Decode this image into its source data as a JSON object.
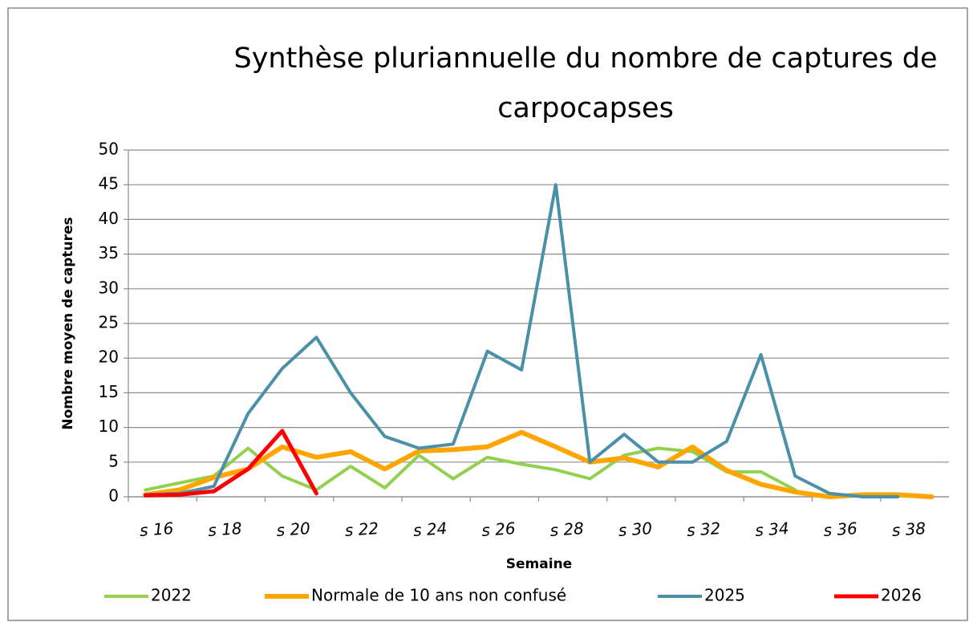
{
  "chart_data": {
    "type": "line",
    "title": "Synthèse pluriannuelle du nombre de captures de carpocapses",
    "y_label": "Nombre moyen de captures",
    "x_label": "Semaine",
    "categories": [
      "s 16",
      null,
      "s 18",
      null,
      "s 20",
      null,
      "s 22",
      null,
      "s 24",
      null,
      "s 26",
      null,
      "s 28",
      null,
      "s 30",
      null,
      "s 32",
      null,
      "s 34",
      null,
      "s 36",
      null,
      "s 38",
      null
    ],
    "series": [
      {
        "name": "2022",
        "color": "#92d050",
        "values": [
          1,
          2,
          3,
          7,
          3,
          1,
          4.4,
          1.3,
          6,
          2.6,
          5.7,
          4.7,
          3.9,
          2.6,
          6,
          7,
          6.5,
          3.6,
          3.6,
          1,
          null,
          null,
          null,
          null
        ]
      },
      {
        "name": "Normale de 10 ans non confusé",
        "color": "#ffa500",
        "values": [
          0.3,
          1,
          2.8,
          4,
          7.2,
          5.7,
          6.5,
          4,
          6.6,
          6.8,
          7.2,
          9.3,
          7.2,
          5,
          5.6,
          4.3,
          7.2,
          3.8,
          1.8,
          0.7,
          0,
          0.3,
          0.3,
          0
        ]
      },
      {
        "name": "2025",
        "color": "#4a90a8",
        "values": [
          0.3,
          0.5,
          1.5,
          12,
          18.5,
          23,
          15,
          8.7,
          7,
          7.6,
          21,
          18.3,
          45,
          5,
          9,
          5,
          5,
          8,
          20.5,
          3,
          0.5,
          0,
          0,
          null
        ]
      },
      {
        "name": "2026",
        "color": "#ff0000",
        "values": [
          0.2,
          0.3,
          0.8,
          4,
          9.5,
          0.5,
          null,
          null,
          null,
          null,
          null,
          null,
          null,
          null,
          null,
          null,
          null,
          null,
          null,
          null,
          null,
          null,
          null,
          null
        ]
      }
    ],
    "ylim": [
      0,
      50
    ],
    "yticks": [
      0,
      5,
      10,
      15,
      20,
      25,
      30,
      35,
      40,
      45,
      50
    ],
    "grid": true,
    "legend": "bottom"
  }
}
